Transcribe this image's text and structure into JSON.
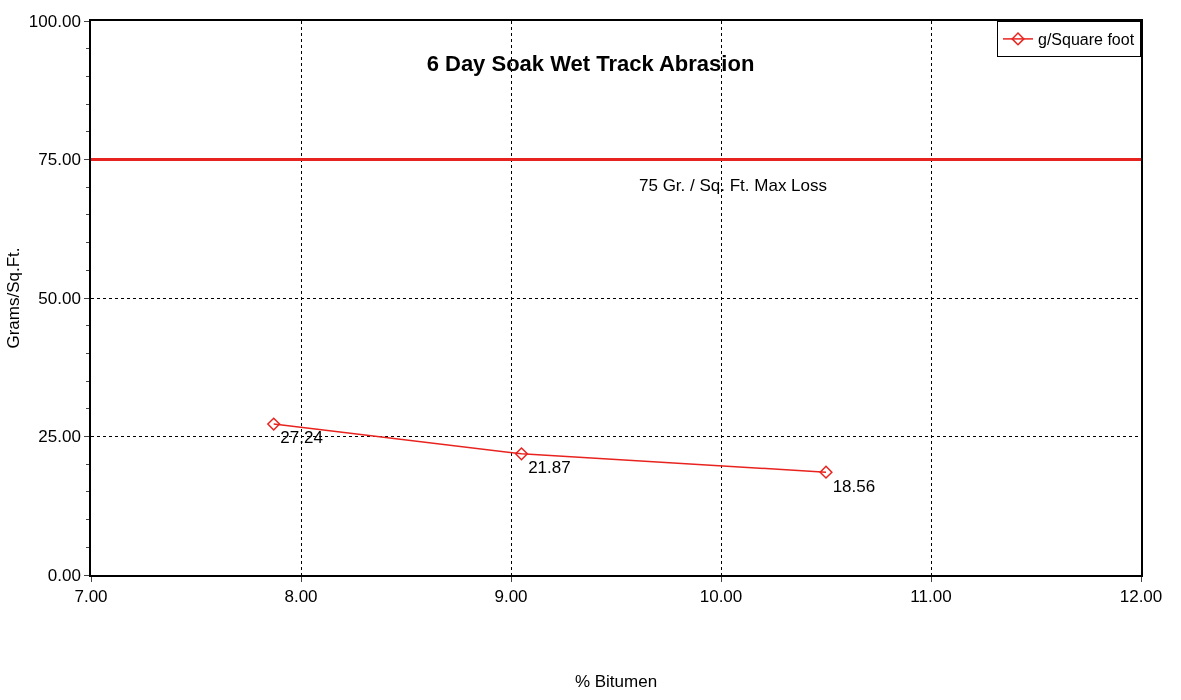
{
  "chart_data": {
    "type": "line",
    "title": "6 Day Soak Wet Track Abrasion",
    "xlabel": "% Bitumen",
    "ylabel": "Grams/Sq.Ft.",
    "x": [
      7.87,
      9.05,
      10.5
    ],
    "series": [
      {
        "name": "g/Square foot",
        "color": "#e8231f",
        "values": [
          27.24,
          21.87,
          18.56
        ]
      }
    ],
    "data_labels": true,
    "marker": "diamond",
    "line_style": "solid",
    "grid": true,
    "legend": "top right",
    "xlim": [
      7,
      12
    ],
    "xticks": [
      {
        "value": 7,
        "label": "7.00"
      },
      {
        "value": 8,
        "label": "8.00"
      },
      {
        "value": 9,
        "label": "9.00"
      },
      {
        "value": 10,
        "label": "10.00"
      },
      {
        "value": 11,
        "label": "11.00"
      },
      {
        "value": 12,
        "label": "12.00"
      }
    ],
    "ylim": [
      0,
      100
    ],
    "yticks": [
      {
        "value": 0,
        "label": "0.00"
      },
      {
        "value": 25,
        "label": "25.00"
      },
      {
        "value": 50,
        "label": "50.00"
      },
      {
        "value": 75,
        "label": "75.00"
      },
      {
        "value": 100,
        "label": "100.00"
      }
    ],
    "ref_lines": [
      {
        "axis": "y",
        "value": 75,
        "label": "75 Gr. / Sq. Ft. Max Loss",
        "color": "#e8231f",
        "line_style": "solid"
      }
    ]
  }
}
